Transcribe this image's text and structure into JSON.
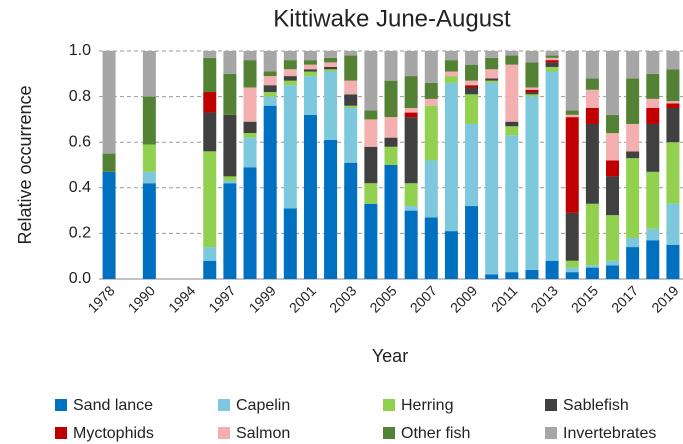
{
  "chart_data": {
    "type": "stacked-bar",
    "title": "Kittiwake June-August",
    "x_label": "Year",
    "y_label": "Relative occurrence",
    "categories": [
      "1978",
      null,
      "1990",
      null,
      "1994",
      null,
      "1997",
      null,
      "1999",
      null,
      "2001",
      null,
      "2003",
      null,
      "2005",
      null,
      "2007",
      null,
      "2009",
      null,
      "2011",
      null,
      "2013",
      null,
      "2015",
      null,
      "2017",
      null,
      "2019"
    ],
    "ylim": [
      0,
      1
    ],
    "yticks": [
      {
        "value": 0,
        "label": "0.0"
      },
      0.2,
      0.4,
      0.6,
      0.8,
      {
        "value": 1,
        "label": "1.0"
      }
    ],
    "grid": true,
    "series": [
      {
        "name": "Sand lance",
        "color": "#0070c0",
        "values": [
          0.47,
          null,
          0.42,
          null,
          null,
          0.08,
          0.42,
          0.49,
          0.76,
          0.31,
          0.72,
          0.61,
          0.51,
          0.33,
          0.5,
          0.3,
          0.27,
          0.21,
          0.32,
          0.02,
          0.03,
          0.04,
          0.08,
          0.03,
          0.05,
          0.06,
          0.14,
          0.17,
          0.15
        ]
      },
      {
        "name": "Capelin",
        "color": "#7ec8de",
        "values": [
          0,
          null,
          0.05,
          null,
          null,
          0.06,
          0.01,
          0.13,
          0.04,
          0.54,
          0.17,
          0.3,
          0.24,
          0,
          0,
          0.02,
          0.25,
          0.65,
          0.36,
          0.84,
          0.6,
          0.76,
          0.83,
          0.02,
          0.01,
          0.02,
          0.04,
          0.05,
          0.18
        ]
      },
      {
        "name": "Herring",
        "color": "#92d050",
        "values": [
          0,
          null,
          0.12,
          null,
          null,
          0.42,
          0.02,
          0.02,
          0.02,
          0.02,
          0.02,
          0.01,
          0.01,
          0.09,
          0.08,
          0.1,
          0.24,
          0.03,
          0.13,
          0.01,
          0.04,
          0.01,
          0.02,
          0.03,
          0.27,
          0.2,
          0.35,
          0.25,
          0.27
        ]
      },
      {
        "name": "Sablefish",
        "color": "#404040",
        "values": [
          0,
          null,
          0,
          null,
          null,
          0.17,
          0.27,
          0.05,
          0.03,
          0.02,
          0.01,
          0.01,
          0.05,
          0.16,
          0.04,
          0.29,
          0,
          0,
          0.03,
          0.01,
          0.02,
          0.01,
          0.02,
          0.21,
          0.35,
          0.17,
          0.03,
          0.21,
          0.15
        ]
      },
      {
        "name": "Myctophids",
        "color": "#c00000",
        "values": [
          0,
          null,
          0,
          null,
          null,
          0.09,
          0,
          0,
          0,
          0,
          0,
          0,
          0,
          0,
          0,
          0.02,
          0,
          0,
          0.01,
          0,
          0,
          0.01,
          0.01,
          0.42,
          0.07,
          0.07,
          0,
          0.07,
          0.02
        ]
      },
      {
        "name": "Salmon",
        "color": "#f4b0b0",
        "values": [
          0,
          null,
          0,
          null,
          null,
          0,
          0,
          0.15,
          0.04,
          0.03,
          0.02,
          0.02,
          0.06,
          0.12,
          0.09,
          0.02,
          0.03,
          0.02,
          0.02,
          0.04,
          0.25,
          0.01,
          0.01,
          0.01,
          0.08,
          0.12,
          0.12,
          0.04,
          0.01
        ]
      },
      {
        "name": "Other fish",
        "color": "#548235",
        "values": [
          0.08,
          null,
          0.21,
          null,
          null,
          0.15,
          0.18,
          0.12,
          0.02,
          0.04,
          0.02,
          0.02,
          0.11,
          0.04,
          0.16,
          0.14,
          0.07,
          0.05,
          0.07,
          0.05,
          0.04,
          0.11,
          0.01,
          0.02,
          0.05,
          0.08,
          0.2,
          0.11,
          0.14
        ]
      },
      {
        "name": "Invertebrates",
        "color": "#a6a6a6",
        "values": [
          0.45,
          null,
          0.2,
          null,
          null,
          0.03,
          0.1,
          0.04,
          0.09,
          0.04,
          0.04,
          0.03,
          0.02,
          0.26,
          0.13,
          0.11,
          0.14,
          0.04,
          0.06,
          0.03,
          0.02,
          0.05,
          0.02,
          0.26,
          0.12,
          0.28,
          0.12,
          0.1,
          0.08
        ]
      }
    ]
  }
}
